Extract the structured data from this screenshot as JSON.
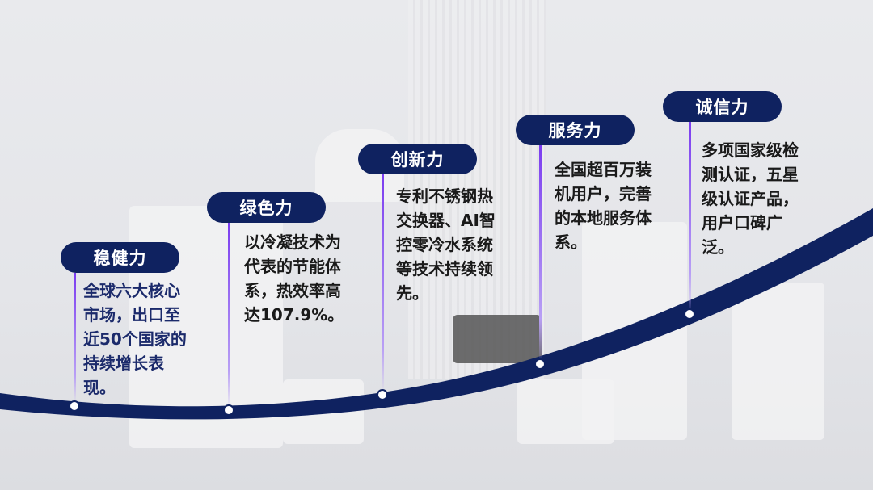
{
  "colors": {
    "navy": "#0f2260",
    "accent_line": "#7b3cf0"
  },
  "milestones": [
    {
      "title": "稳健力",
      "text": "全球六大核心\n市场，出口至\n近50个国家的\n持续增长表\n现。"
    },
    {
      "title": "绿色力",
      "text": "以冷凝技术为\n代表的节能体\n系，热效率高\n达107.9%。"
    },
    {
      "title": "创新力",
      "text": "专利不锈钢热\n交换器、AI智\n控零冷水系统\n等技术持续领\n先。"
    },
    {
      "title": "服务力",
      "text": "全国超百万装\n机用户，完善\n的本地服务体\n系。"
    },
    {
      "title": "诚信力",
      "text": "多项国家级检\n测认证，五星\n级认证产品，\n用户口碑广\n泛。"
    }
  ]
}
